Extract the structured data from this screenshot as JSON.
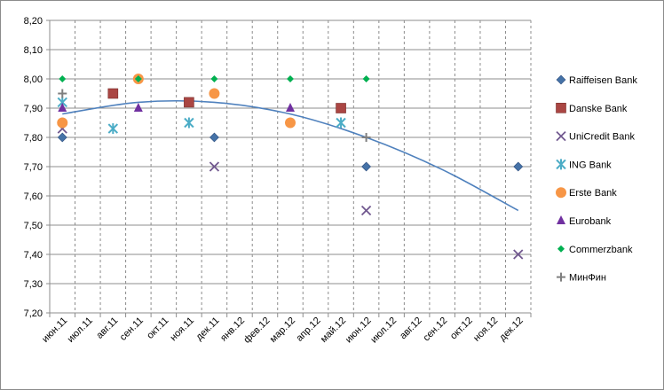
{
  "chart_data": {
    "type": "scatter",
    "title": "",
    "xlabel": "",
    "ylabel": "",
    "categories": [
      "июн.11",
      "июл.11",
      "авг.11",
      "сен.11",
      "окт.11",
      "ноя.11",
      "дек.11",
      "янв.12",
      "фев.12",
      "мар.12",
      "апр.12",
      "май.12",
      "июн.12",
      "июл.12",
      "авг.12",
      "сен.12",
      "окт.12",
      "ноя.12",
      "дек.12"
    ],
    "y_ticks": [
      "7,20",
      "7,30",
      "7,40",
      "7,50",
      "7,60",
      "7,70",
      "7,80",
      "7,90",
      "8,00",
      "8,10",
      "8,20"
    ],
    "ylim": [
      7.2,
      8.2
    ],
    "y_step": 0.1,
    "grid": {
      "x_major": "dashed",
      "y_major": "solid"
    },
    "legend_position": "right",
    "series": [
      {
        "name": "Raiffeisen Bank",
        "marker": "diamond",
        "color": "#4572a7",
        "points": [
          [
            "июн.11",
            7.8
          ],
          [
            "сен.11",
            8.0
          ],
          [
            "дек.11",
            7.8
          ],
          [
            "июн.12",
            7.7
          ],
          [
            "дек.12",
            7.7
          ]
        ]
      },
      {
        "name": "Danske Bank",
        "marker": "square",
        "color": "#aa4643",
        "points": [
          [
            "авг.11",
            7.95
          ],
          [
            "ноя.11",
            7.92
          ],
          [
            "май.12",
            7.9
          ]
        ]
      },
      {
        "name": "UniCredit Bank",
        "marker": "x",
        "color": "#71588f",
        "points": [
          [
            "июн.11",
            7.83
          ],
          [
            "дек.11",
            7.7
          ],
          [
            "июн.12",
            7.55
          ],
          [
            "дек.12",
            7.4
          ]
        ]
      },
      {
        "name": "ING Bank",
        "marker": "star",
        "color": "#4bacc6",
        "points": [
          [
            "июн.11",
            7.92
          ],
          [
            "авг.11",
            7.83
          ],
          [
            "ноя.11",
            7.85
          ],
          [
            "май.12",
            7.85
          ]
        ]
      },
      {
        "name": "Erste Bank",
        "marker": "circle",
        "color": "#f79646",
        "points": [
          [
            "июн.11",
            7.85
          ],
          [
            "сен.11",
            8.0
          ],
          [
            "дек.11",
            7.95
          ],
          [
            "мар.12",
            7.85
          ]
        ]
      },
      {
        "name": "Eurobank",
        "marker": "triangle",
        "color": "#7030a0",
        "points": [
          [
            "июн.11",
            7.9
          ],
          [
            "сен.11",
            7.9
          ],
          [
            "мар.12",
            7.9
          ]
        ]
      },
      {
        "name": "Commerzbank",
        "marker": "small-diamond",
        "color": "#00b050",
        "points": [
          [
            "июн.11",
            8.0
          ],
          [
            "сен.11",
            8.0
          ],
          [
            "дек.11",
            8.0
          ],
          [
            "мар.12",
            8.0
          ],
          [
            "июн.12",
            8.0
          ]
        ]
      },
      {
        "name": "МинФин",
        "marker": "plus",
        "color": "#7f7f7f",
        "points": [
          [
            "июн.11",
            7.95
          ],
          [
            "июн.12",
            7.8
          ]
        ]
      }
    ],
    "trendline": {
      "type": "polynomial",
      "color": "#4f81bd",
      "points": [
        [
          "июн.11",
          7.88
        ],
        [
          "сен.11",
          7.92
        ],
        [
          "дек.11",
          7.92
        ],
        [
          "мар.12",
          7.88
        ],
        [
          "июн.12",
          7.8
        ],
        [
          "сен.12",
          7.69
        ],
        [
          "дек.12",
          7.55
        ]
      ]
    }
  }
}
